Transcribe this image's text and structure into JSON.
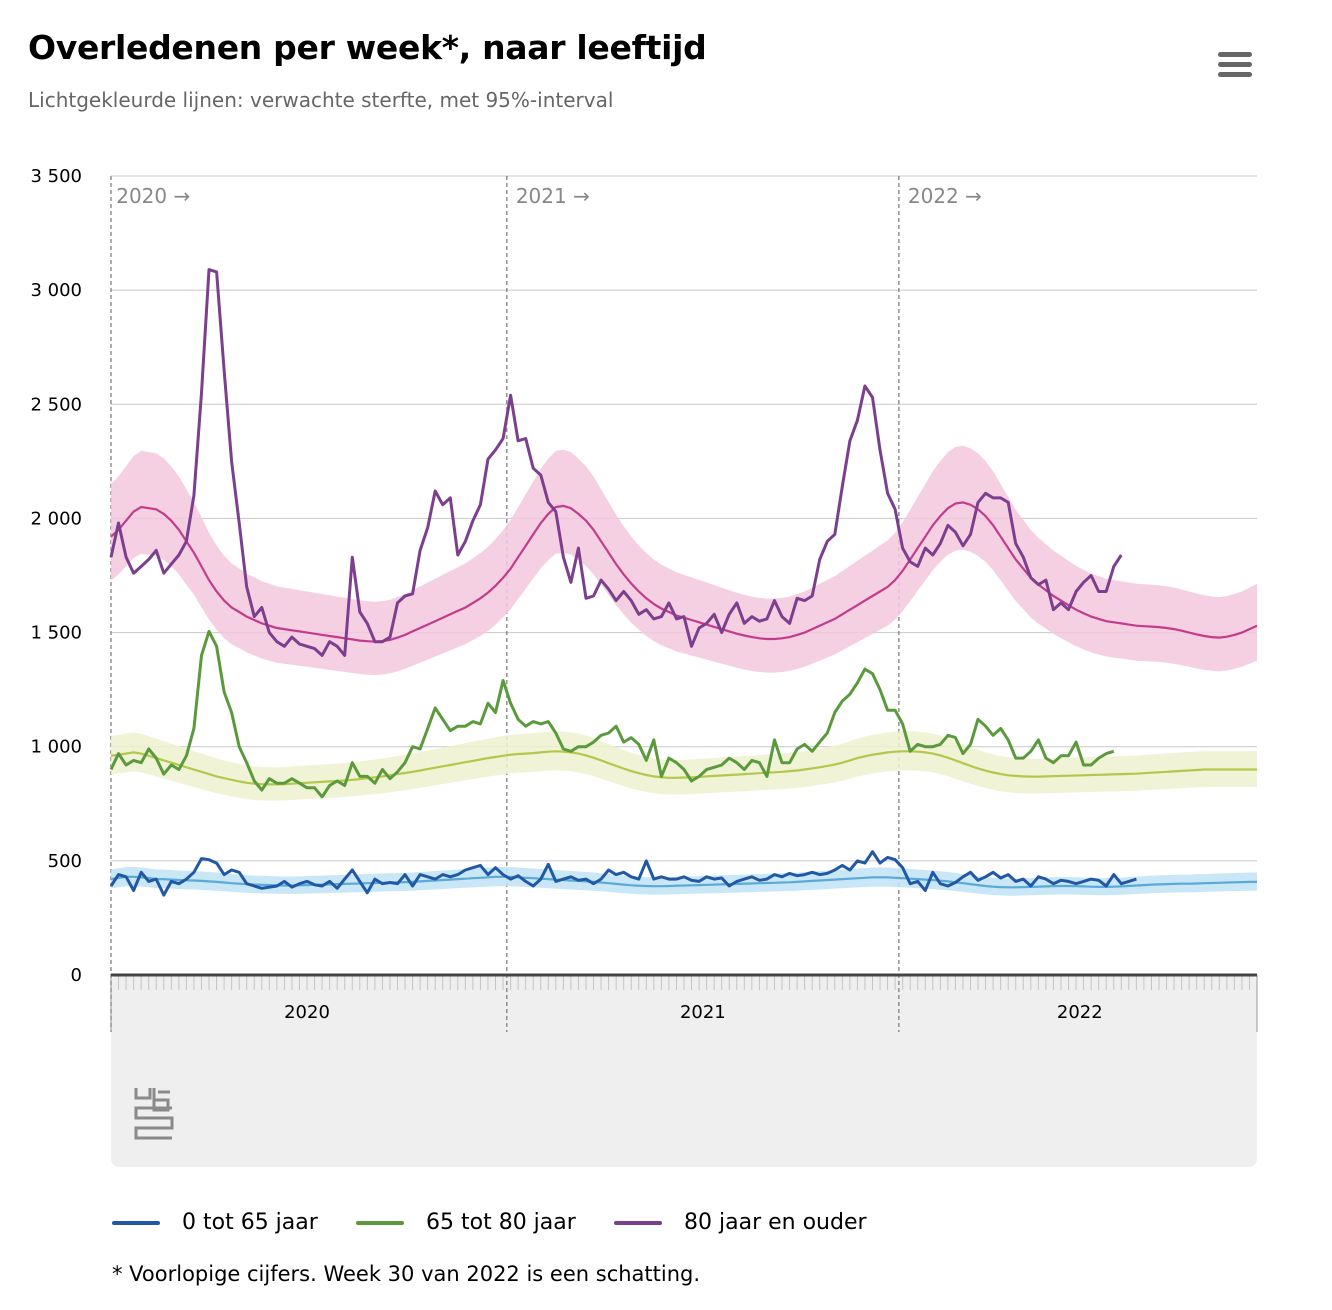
{
  "title": "Overledenen per week*, naar leeftijd",
  "subtitle": "Lichtgekleurde lijnen: verwachte sterfte, met 95%-interval",
  "footnote": "* Voorlopige cijfers. Week 30 van 2022 is een schatting.",
  "menu_icon": "hamburger-menu-icon",
  "logo_icon": "cbs-logo-icon",
  "legend": [
    {
      "label": "0 tot 65 jaar",
      "color": "#2158a6"
    },
    {
      "label": "65 tot 80 jaar",
      "color": "#5b9a3c"
    },
    {
      "label": "80 jaar en ouder",
      "color": "#7b3f8e"
    }
  ],
  "chart_data": {
    "type": "line",
    "x_unit": "week",
    "x_range": [
      1,
      153
    ],
    "ylim": [
      0,
      3500
    ],
    "yticks": [
      0,
      500,
      1000,
      1500,
      2000,
      2500,
      3000,
      3500
    ],
    "ytick_labels": [
      "0",
      "500",
      "1 000",
      "1 500",
      "2 000",
      "2 500",
      "3 000",
      "3 500"
    ],
    "years": [
      {
        "label": "2020",
        "tag": "2020 →",
        "start_week": 1,
        "end_week": 53
      },
      {
        "label": "2021",
        "tag": "2021 →",
        "start_week": 54,
        "end_week": 105
      },
      {
        "label": "2022",
        "tag": "2022 →",
        "start_week": 106,
        "end_week": 153
      }
    ],
    "grid": true,
    "legend_position": "bottom",
    "series": [
      {
        "name": "0 tot 65 jaar",
        "color": "#2158a6",
        "values": [
          390,
          440,
          430,
          370,
          450,
          410,
          420,
          350,
          410,
          400,
          420,
          450,
          510,
          505,
          490,
          440,
          460,
          450,
          400,
          390,
          380,
          385,
          390,
          410,
          385,
          400,
          410,
          395,
          390,
          410,
          380,
          420,
          460,
          410,
          360,
          420,
          400,
          405,
          400,
          440,
          390,
          440,
          430,
          420,
          440,
          430,
          440,
          460,
          470,
          480,
          440,
          470,
          440,
          420,
          435,
          410,
          390,
          420,
          485,
          410,
          420,
          430,
          415,
          420,
          400,
          420,
          460,
          440,
          450,
          430,
          420,
          500,
          420,
          430,
          420,
          420,
          430,
          415,
          410,
          430,
          420,
          425,
          390,
          410,
          420,
          430,
          415,
          420,
          440,
          430,
          445,
          435,
          440,
          450,
          440,
          445,
          460,
          480,
          460,
          500,
          490,
          540,
          490,
          515,
          505,
          470,
          400,
          410,
          370,
          450,
          400,
          390,
          405,
          430,
          450,
          415,
          430,
          450,
          425,
          440,
          410,
          420,
          390,
          430,
          420,
          400,
          415,
          410,
          400,
          410,
          420,
          415,
          390,
          440,
          400,
          410,
          420
        ]
      },
      {
        "name": "65 tot 80 jaar",
        "color": "#5b9a3c",
        "values": [
          900,
          970,
          920,
          940,
          930,
          990,
          950,
          880,
          920,
          900,
          960,
          1080,
          1400,
          1505,
          1440,
          1240,
          1150,
          1000,
          930,
          850,
          810,
          860,
          840,
          840,
          860,
          840,
          820,
          820,
          780,
          830,
          850,
          830,
          930,
          870,
          870,
          840,
          900,
          860,
          890,
          930,
          1000,
          990,
          1080,
          1170,
          1120,
          1070,
          1090,
          1090,
          1110,
          1100,
          1190,
          1150,
          1290,
          1190,
          1120,
          1090,
          1110,
          1100,
          1110,
          1060,
          990,
          980,
          1000,
          1000,
          1020,
          1050,
          1060,
          1090,
          1020,
          1040,
          1010,
          940,
          1030,
          870,
          950,
          930,
          900,
          850,
          870,
          900,
          910,
          920,
          950,
          930,
          900,
          940,
          930,
          870,
          1030,
          930,
          930,
          990,
          1010,
          980,
          1020,
          1060,
          1150,
          1200,
          1230,
          1280,
          1340,
          1320,
          1250,
          1160,
          1160,
          1100,
          980,
          1010,
          1000,
          1000,
          1010,
          1050,
          1040,
          970,
          1010,
          1120,
          1090,
          1050,
          1080,
          1030,
          950,
          950,
          980,
          1030,
          950,
          930,
          960,
          960,
          1020,
          920,
          920,
          950,
          970,
          980
        ]
      },
      {
        "name": "80 jaar en ouder",
        "color": "#7b3f8e",
        "values": [
          1830,
          1980,
          1830,
          1760,
          1790,
          1820,
          1860,
          1760,
          1800,
          1840,
          1900,
          2100,
          2550,
          3090,
          3080,
          2650,
          2250,
          1980,
          1700,
          1570,
          1610,
          1500,
          1460,
          1440,
          1480,
          1450,
          1440,
          1430,
          1400,
          1460,
          1440,
          1400,
          1830,
          1590,
          1540,
          1460,
          1460,
          1480,
          1630,
          1660,
          1670,
          1860,
          1960,
          2120,
          2060,
          2090,
          1840,
          1900,
          1990,
          2060,
          2260,
          2300,
          2350,
          2540,
          2340,
          2350,
          2220,
          2190,
          2070,
          2030,
          1830,
          1720,
          1870,
          1650,
          1660,
          1730,
          1690,
          1640,
          1680,
          1640,
          1580,
          1600,
          1560,
          1570,
          1630,
          1560,
          1570,
          1440,
          1520,
          1540,
          1580,
          1500,
          1580,
          1630,
          1540,
          1570,
          1550,
          1560,
          1640,
          1570,
          1540,
          1650,
          1640,
          1660,
          1820,
          1900,
          1930,
          2140,
          2340,
          2430,
          2580,
          2530,
          2300,
          2110,
          2040,
          1870,
          1810,
          1790,
          1870,
          1840,
          1890,
          1970,
          1940,
          1880,
          1930,
          2070,
          2110,
          2090,
          2090,
          2070,
          1890,
          1830,
          1740,
          1710,
          1730,
          1600,
          1630,
          1600,
          1680,
          1720,
          1750,
          1680,
          1680,
          1790,
          1840
        ]
      },
      {
        "name": "",
        "color": "#5aa9d6",
        "values": [
          420,
          425,
          430,
          430,
          428,
          425,
          420,
          420,
          418,
          416,
          415,
          414,
          412,
          410,
          408,
          405,
          402,
          400,
          398,
          396,
          395,
          394,
          393,
          392,
          392,
          393,
          394,
          395,
          396,
          397,
          398,
          399,
          400,
          401,
          402,
          403,
          404,
          405,
          406,
          407,
          408,
          410,
          412,
          414,
          416,
          418,
          420,
          422,
          424,
          426,
          428,
          430,
          430,
          430,
          428,
          426,
          424,
          422,
          420,
          418,
          416,
          414,
          412,
          410,
          408,
          405,
          402,
          399,
          396,
          393,
          391,
          390,
          389,
          389,
          390,
          391,
          392,
          393,
          394,
          395,
          396,
          397,
          398,
          399,
          400,
          401,
          402,
          403,
          404,
          405,
          406,
          408,
          410,
          412,
          414,
          416,
          418,
          420,
          422,
          424,
          426,
          428,
          428,
          428,
          426,
          424,
          422,
          420,
          418,
          416,
          413,
          410,
          406,
          402,
          398,
          394,
          390,
          387,
          385,
          384,
          384,
          385,
          386,
          387,
          388,
          389,
          390,
          390,
          389,
          388,
          387,
          386,
          386,
          387,
          388,
          390,
          392,
          394,
          396,
          397,
          398,
          399,
          400,
          400,
          401,
          402,
          403,
          404,
          405,
          406,
          407,
          408,
          408
        ]
      },
      {
        "name": "",
        "color": "#b2c84a",
        "values": [
          960,
          965,
          970,
          975,
          970,
          960,
          950,
          940,
          930,
          920,
          910,
          900,
          890,
          880,
          870,
          862,
          855,
          848,
          842,
          838,
          836,
          835,
          835,
          836,
          838,
          840,
          842,
          844,
          846,
          848,
          850,
          852,
          855,
          858,
          862,
          866,
          870,
          875,
          880,
          885,
          890,
          896,
          902,
          908,
          914,
          920,
          926,
          932,
          938,
          944,
          950,
          955,
          960,
          965,
          968,
          970,
          972,
          975,
          978,
          980,
          978,
          975,
          970,
          962,
          952,
          940,
          928,
          916,
          904,
          893,
          884,
          876,
          870,
          866,
          864,
          864,
          865,
          866,
          868,
          870,
          872,
          874,
          876,
          878,
          880,
          882,
          884,
          886,
          888,
          890,
          893,
          896,
          900,
          905,
          910,
          916,
          922,
          930,
          940,
          950,
          958,
          965,
          970,
          975,
          978,
          980,
          980,
          978,
          975,
          970,
          962,
          952,
          940,
          928,
          916,
          905,
          895,
          887,
          880,
          875,
          872,
          870,
          869,
          869,
          870,
          871,
          872,
          873,
          874,
          875,
          876,
          877,
          878,
          879,
          880,
          881,
          882,
          884,
          886,
          888,
          890,
          892,
          894,
          896,
          898,
          900,
          900,
          900,
          900,
          900,
          900,
          900,
          900
        ]
      },
      {
        "name": "",
        "color": "#c33b8c",
        "values": [
          1920,
          1950,
          1990,
          2030,
          2050,
          2045,
          2040,
          2020,
          1990,
          1950,
          1900,
          1850,
          1790,
          1730,
          1680,
          1640,
          1610,
          1590,
          1570,
          1555,
          1540,
          1530,
          1520,
          1515,
          1510,
          1505,
          1500,
          1495,
          1490,
          1485,
          1480,
          1475,
          1470,
          1465,
          1462,
          1460,
          1462,
          1468,
          1478,
          1490,
          1505,
          1520,
          1535,
          1550,
          1565,
          1580,
          1595,
          1610,
          1630,
          1650,
          1675,
          1705,
          1740,
          1780,
          1830,
          1880,
          1930,
          1980,
          2020,
          2050,
          2055,
          2045,
          2020,
          1990,
          1950,
          1900,
          1850,
          1800,
          1755,
          1715,
          1680,
          1650,
          1625,
          1605,
          1590,
          1575,
          1565,
          1555,
          1545,
          1535,
          1525,
          1515,
          1505,
          1495,
          1487,
          1480,
          1475,
          1472,
          1472,
          1475,
          1480,
          1490,
          1500,
          1515,
          1530,
          1545,
          1560,
          1580,
          1600,
          1620,
          1640,
          1660,
          1680,
          1700,
          1730,
          1770,
          1820,
          1870,
          1920,
          1970,
          2010,
          2045,
          2065,
          2070,
          2060,
          2040,
          2010,
          1970,
          1920,
          1870,
          1820,
          1780,
          1740,
          1710,
          1685,
          1660,
          1640,
          1620,
          1600,
          1585,
          1570,
          1560,
          1550,
          1545,
          1540,
          1535,
          1530,
          1528,
          1526,
          1524,
          1520,
          1515,
          1508,
          1500,
          1492,
          1485,
          1480,
          1478,
          1482,
          1490,
          1500,
          1515,
          1530
        ]
      }
    ]
  }
}
